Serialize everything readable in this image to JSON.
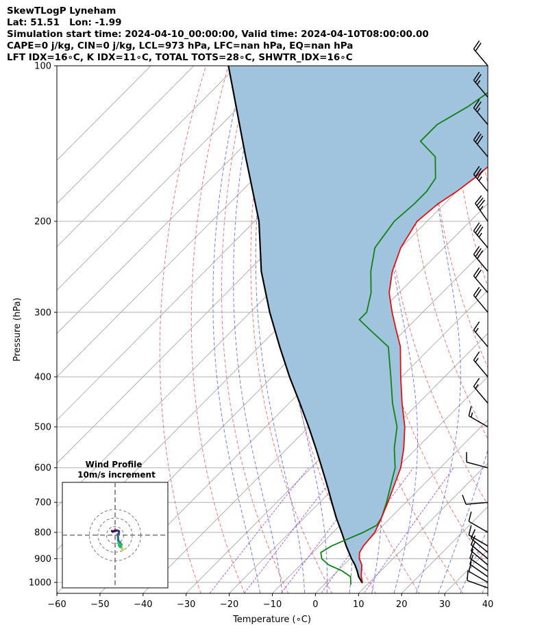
{
  "header": {
    "line1": "SkewTLogP Lyneham",
    "line2": "Lat: 51.51   Lon: -1.99",
    "line3": "Simulation start time: 2024-04-10_00:00:00, Valid time: 2024-04-10T08:00:00.00",
    "line4": "CAPE=0 j/kg, CIN=0 j/kg, LCL=973 hPa, LFC=nan hPa, EQ=nan hPa",
    "line5": "LFT IDX=16∘C, K IDX=11∘C, TOTAL TOTS=28∘C, SHWTR_IDX=16∘C"
  },
  "chart_data": {
    "type": "line",
    "subtype": "skew-t log-p",
    "xlabel": "Temperature (∘C)",
    "ylabel": "Pressure (hPa)",
    "xlim": [
      -60,
      40
    ],
    "ylim": [
      1050,
      100
    ],
    "yscale": "log",
    "grid": true,
    "x_ticks": [
      -60,
      -50,
      -40,
      -30,
      -20,
      -10,
      0,
      10,
      20,
      30,
      40
    ],
    "y_ticks": [
      100,
      200,
      300,
      400,
      500,
      600,
      700,
      800,
      900,
      1000
    ],
    "colors": {
      "temperature": "#e01010",
      "dewpoint": "#108010",
      "parcel": "#000000",
      "shade": "#a0c4de",
      "dry_adiabat": "#f06060",
      "moist_adiabat": "#4a5ef0",
      "mixing_ratio": "#8a2be2",
      "skewed_isotherm": "#a8a8a8"
    },
    "series": [
      {
        "role": "temperature",
        "points": [
          {
            "p": 1000,
            "t": 8.4
          },
          {
            "p": 975,
            "t": 6.8
          },
          {
            "p": 950,
            "t": 5.5
          },
          {
            "p": 925,
            "t": 4.2
          },
          {
            "p": 900,
            "t": 2.2
          },
          {
            "p": 875,
            "t": 0.8
          },
          {
            "p": 850,
            "t": 0.2
          },
          {
            "p": 800,
            "t": -0.3
          },
          {
            "p": 750,
            "t": -2.1
          },
          {
            "p": 700,
            "t": -4.2
          },
          {
            "p": 600,
            "t": -9.2
          },
          {
            "p": 550,
            "t": -13.0
          },
          {
            "p": 500,
            "t": -17.7
          },
          {
            "p": 450,
            "t": -23.8
          },
          {
            "p": 400,
            "t": -30.2
          },
          {
            "p": 350,
            "t": -37.2
          },
          {
            "p": 325,
            "t": -42.0
          },
          {
            "p": 300,
            "t": -47.1
          },
          {
            "p": 275,
            "t": -52.3
          },
          {
            "p": 250,
            "t": -56.5
          },
          {
            "p": 225,
            "t": -60.0
          },
          {
            "p": 200,
            "t": -62.3
          },
          {
            "p": 185,
            "t": -61.5
          },
          {
            "p": 175,
            "t": -60.0
          },
          {
            "p": 165,
            "t": -59.0
          },
          {
            "p": 150,
            "t": -58.0
          },
          {
            "p": 140,
            "t": -57.5
          },
          {
            "p": 130,
            "t": -57.5
          },
          {
            "p": 120,
            "t": -58.0
          },
          {
            "p": 110,
            "t": -59.0
          },
          {
            "p": 100,
            "t": -59.0
          }
        ]
      },
      {
        "role": "dewpoint",
        "points": [
          {
            "p": 1010,
            "t": 6.2
          },
          {
            "p": 975,
            "t": 4.3
          },
          {
            "p": 950,
            "t": 1.0
          },
          {
            "p": 925,
            "t": -3.5
          },
          {
            "p": 900,
            "t": -6.5
          },
          {
            "p": 875,
            "t": -8.2
          },
          {
            "p": 850,
            "t": -7.2
          },
          {
            "p": 800,
            "t": -3.0
          },
          {
            "p": 775,
            "t": -1.5
          },
          {
            "p": 750,
            "t": -2.1
          },
          {
            "p": 700,
            "t": -4.5
          },
          {
            "p": 600,
            "t": -10.5
          },
          {
            "p": 550,
            "t": -15.2
          },
          {
            "p": 500,
            "t": -19.5
          },
          {
            "p": 450,
            "t": -26.0
          },
          {
            "p": 400,
            "t": -32.5
          },
          {
            "p": 350,
            "t": -40.0
          },
          {
            "p": 325,
            "t": -48.0
          },
          {
            "p": 310,
            "t": -53.0
          },
          {
            "p": 300,
            "t": -53.0
          },
          {
            "p": 275,
            "t": -56.5
          },
          {
            "p": 250,
            "t": -61.5
          },
          {
            "p": 225,
            "t": -66.0
          },
          {
            "p": 200,
            "t": -67.6
          },
          {
            "p": 185,
            "t": -67.0
          },
          {
            "p": 175,
            "t": -67.0
          },
          {
            "p": 165,
            "t": -68.0
          },
          {
            "p": 150,
            "t": -73.0
          },
          {
            "p": 140,
            "t": -80.0
          },
          {
            "p": 130,
            "t": -80.0
          },
          {
            "p": 120,
            "t": -77.0
          },
          {
            "p": 110,
            "t": -75.0
          },
          {
            "p": 100,
            "t": -73.0
          }
        ]
      },
      {
        "role": "parcel",
        "points": [
          {
            "p": 1003,
            "t": 8.5
          },
          {
            "p": 975,
            "t": 6.2
          },
          {
            "p": 950,
            "t": 4.5
          },
          {
            "p": 925,
            "t": 2.6
          },
          {
            "p": 900,
            "t": 0.4
          },
          {
            "p": 850,
            "t": -3.8
          },
          {
            "p": 800,
            "t": -8.0
          },
          {
            "p": 750,
            "t": -12.6
          },
          {
            "p": 700,
            "t": -17.2
          },
          {
            "p": 650,
            "t": -22.1
          },
          {
            "p": 600,
            "t": -27.5
          },
          {
            "p": 550,
            "t": -33.4
          },
          {
            "p": 500,
            "t": -40.0
          },
          {
            "p": 450,
            "t": -47.5
          },
          {
            "p": 400,
            "t": -56.0
          },
          {
            "p": 350,
            "t": -65.2
          },
          {
            "p": 300,
            "t": -75.5
          },
          {
            "p": 250,
            "t": -86.9
          },
          {
            "p": 200,
            "t": -99.0
          },
          {
            "p": 150,
            "t": -117.0
          },
          {
            "p": 100,
            "t": -142.0
          }
        ]
      }
    ],
    "wind_barbs": [
      {
        "p": 1025,
        "speed": 10,
        "dir": 290
      },
      {
        "p": 1000,
        "speed": 10,
        "dir": 300
      },
      {
        "p": 975,
        "speed": 10,
        "dir": 305
      },
      {
        "p": 950,
        "speed": 10,
        "dir": 305
      },
      {
        "p": 925,
        "speed": 10,
        "dir": 310
      },
      {
        "p": 900,
        "speed": 10,
        "dir": 310
      },
      {
        "p": 875,
        "speed": 10,
        "dir": 310
      },
      {
        "p": 850,
        "speed": 10,
        "dir": 300
      },
      {
        "p": 800,
        "speed": 10,
        "dir": 300
      },
      {
        "p": 700,
        "speed": 10,
        "dir": 265
      },
      {
        "p": 600,
        "speed": 10,
        "dir": 285
      },
      {
        "p": 500,
        "speed": 15,
        "dir": 300
      },
      {
        "p": 450,
        "speed": 15,
        "dir": 320
      },
      {
        "p": 400,
        "speed": 15,
        "dir": 320
      },
      {
        "p": 350,
        "speed": 15,
        "dir": 320
      },
      {
        "p": 300,
        "speed": 20,
        "dir": 320
      },
      {
        "p": 275,
        "speed": 20,
        "dir": 320
      },
      {
        "p": 250,
        "speed": 30,
        "dir": 320
      },
      {
        "p": 225,
        "speed": 35,
        "dir": 320
      },
      {
        "p": 200,
        "speed": 35,
        "dir": 325
      },
      {
        "p": 175,
        "speed": 35,
        "dir": 320
      },
      {
        "p": 150,
        "speed": 30,
        "dir": 320
      },
      {
        "p": 130,
        "speed": 25,
        "dir": 320
      },
      {
        "p": 115,
        "speed": 25,
        "dir": 320
      },
      {
        "p": 100,
        "speed": 20,
        "dir": 320
      }
    ],
    "hodograph": {
      "title": "Wind Profile",
      "subtitle": "10m/s increment",
      "ring_step": 10,
      "ring_count": 3,
      "colormap": "viridis",
      "points": [
        {
          "u": 8.7,
          "v": -17.0
        },
        {
          "u": 7.5,
          "v": -14.0
        },
        {
          "u": 6.0,
          "v": -11.0
        },
        {
          "u": 4.5,
          "v": -9.0
        },
        {
          "u": 3.8,
          "v": -8.5
        },
        {
          "u": 4.5,
          "v": -12.0
        },
        {
          "u": 6.0,
          "v": -14.0
        },
        {
          "u": 7.5,
          "v": -11.0
        },
        {
          "u": 6.0,
          "v": -9.0
        },
        {
          "u": 5.0,
          "v": -7.8
        },
        {
          "u": 3.5,
          "v": -6.0
        },
        {
          "u": 3.5,
          "v": -4.0
        },
        {
          "u": 3.0,
          "v": 1.0
        },
        {
          "u": 4.0,
          "v": 1.0
        },
        {
          "u": 4.5,
          "v": 2.0
        },
        {
          "u": 4.5,
          "v": 4.5
        },
        {
          "u": 3.5,
          "v": 5.0
        },
        {
          "u": 2.0,
          "v": 5.5
        },
        {
          "u": 0.5,
          "v": 5.0
        },
        {
          "u": -1.0,
          "v": 5.0
        },
        {
          "u": -2.8,
          "v": 4.0
        },
        {
          "u": -3.7,
          "v": 4.8
        }
      ]
    }
  }
}
